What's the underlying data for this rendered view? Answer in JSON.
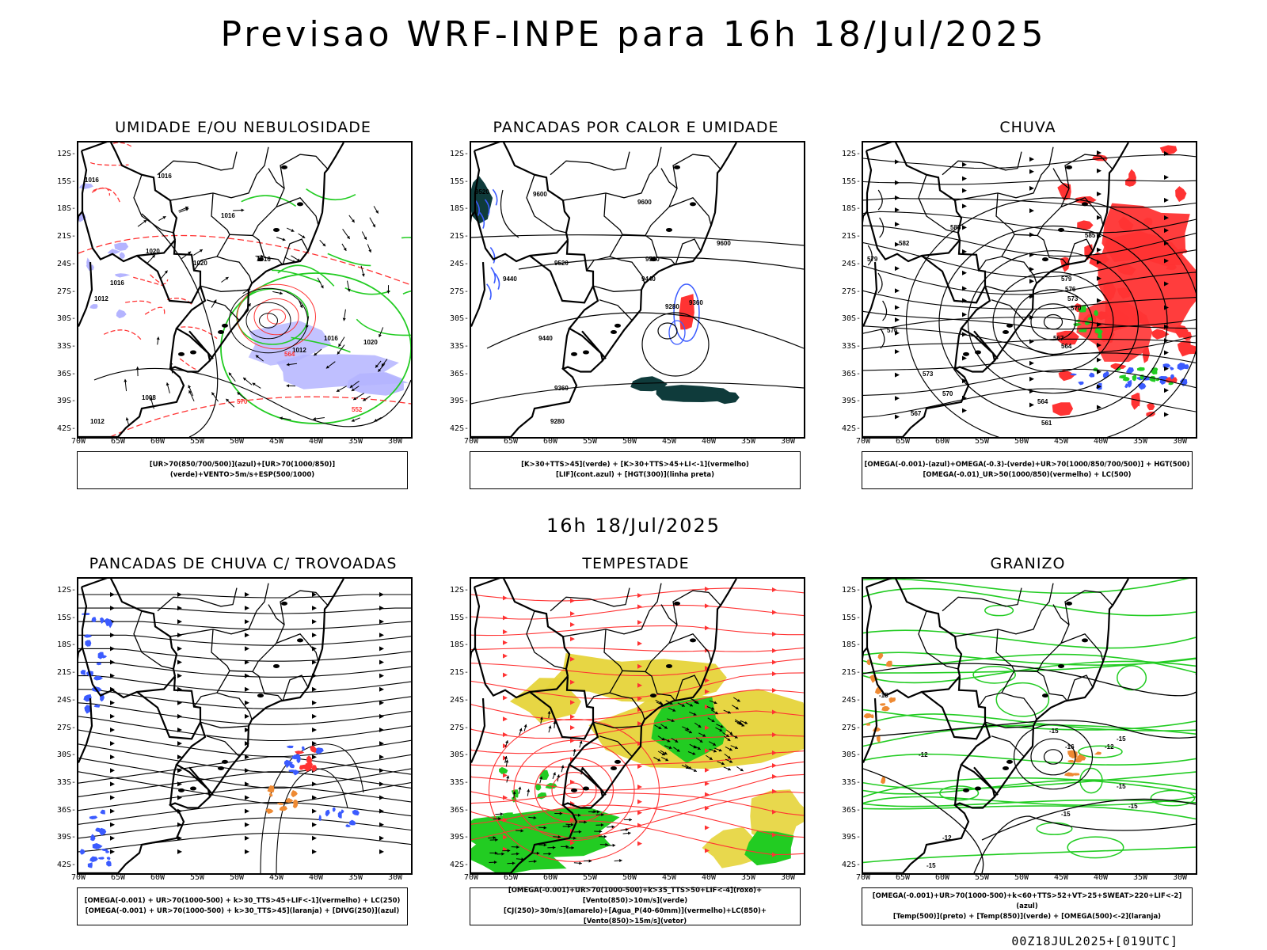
{
  "main_title": "Previsao WRF-INPE  para 16h 18/Jul/2025",
  "mid_title": "16h 18/Jul/2025",
  "footer": "00Z18JUL2025+[019UTC]",
  "lat_labels": [
    "12S",
    "15S",
    "18S",
    "21S",
    "24S",
    "27S",
    "30S",
    "33S",
    "36S",
    "39S",
    "42S"
  ],
  "lon_labels": [
    "70W",
    "65W",
    "60W",
    "55W",
    "50W",
    "45W",
    "40W",
    "35W",
    "30W"
  ],
  "colors": {
    "blue": "#3b5bff",
    "green": "#22cc22",
    "red": "#ff3333",
    "orange": "#ee8a33",
    "yellow": "#e6d43a",
    "lavender": "#b4b4ff",
    "dark": "#0f3b3b"
  },
  "panels": [
    {
      "id": "umidade",
      "title": "UMIDADE E/OU NEBULOSIDADE",
      "legend": [
        "[UR>70(850/700/500)](azul)+[UR>70(1000/850)](verde)+VENTO>5m/s+ESP(500/1000)"
      ],
      "contour_labels": [
        "1016",
        "1016",
        "1016",
        "1020",
        "1020",
        "1016",
        "1016",
        "1012",
        "1012",
        "1016",
        "1020",
        "1008",
        "1012",
        "570",
        "564",
        "552"
      ]
    },
    {
      "id": "pancadas",
      "title": "PANCADAS POR CALOR E UMIDADE",
      "legend": [
        "[K>30+TTS>45](verde) + [K>30+TTS>45+LI<-1](vermelho)",
        "[LIF](cont.azul) + [HGT(300)](linha preta)"
      ],
      "contour_labels": [
        "9520",
        "9600",
        "9600",
        "9600",
        "9520",
        "9520",
        "9440",
        "9440",
        "9440",
        "9360",
        "9280",
        "9360",
        "9280"
      ]
    },
    {
      "id": "chuva",
      "title": "CHUVA",
      "legend": [
        "[OMEGA(-0.001)-(azul)+OMEGA(-0.3)-(verde)+UR>70(1000/850/700/500)] + HGT(500)",
        "[OMEGA(-0.01)_UR>50(1000/850)(vermelho) + LC(500)"
      ],
      "contour_labels": [
        "585",
        "582",
        "579",
        "576",
        "573",
        "570",
        "567",
        "564",
        "561",
        "579",
        "576",
        "573",
        "570",
        "567",
        "564",
        "585"
      ]
    },
    {
      "id": "trovoadas",
      "title": "PANCADAS DE CHUVA C/ TROVOADAS",
      "legend": [
        "[OMEGA(-0.001) + UR>70(1000-500) + k>30_TTS>45+LIF<-1](vermelho) + LC(250)",
        "[OMEGA(-0.001) + UR>70(1000-500) + k>30_TTS>45](laranja) + [DIVG(250)](azul)"
      ],
      "contour_labels": []
    },
    {
      "id": "tempestade",
      "title": "TEMPESTADE",
      "legend": [
        "[OMEGA(-0.001)+UR>70(1000-500)+k>35_TTS>50+LIF<-4](roxo)+[Vento(850)>10m/s](verde)",
        "[CJ(250)>30m/s](amarelo)+[Agua_P(40-60mm)](vermelho)+LC(850)+[Vento(850)>15m/s](vetor)"
      ],
      "contour_labels": []
    },
    {
      "id": "granizo",
      "title": "GRANIZO",
      "legend": [
        "[OMEGA(-0.001)+UR>70(1000-500)+k<60+TTS>52+VT>25+SWEAT>220+LIF<-2](azul)",
        "[Temp(500)](preto) + [Temp(850)](verde) + [OMEGA(500)<-2](laranja)"
      ],
      "contour_labels": [
        "-12",
        "-15",
        "-15",
        "-15",
        "-15",
        "-15",
        "-12",
        "-15",
        "-16",
        "-12",
        "-15"
      ]
    }
  ]
}
